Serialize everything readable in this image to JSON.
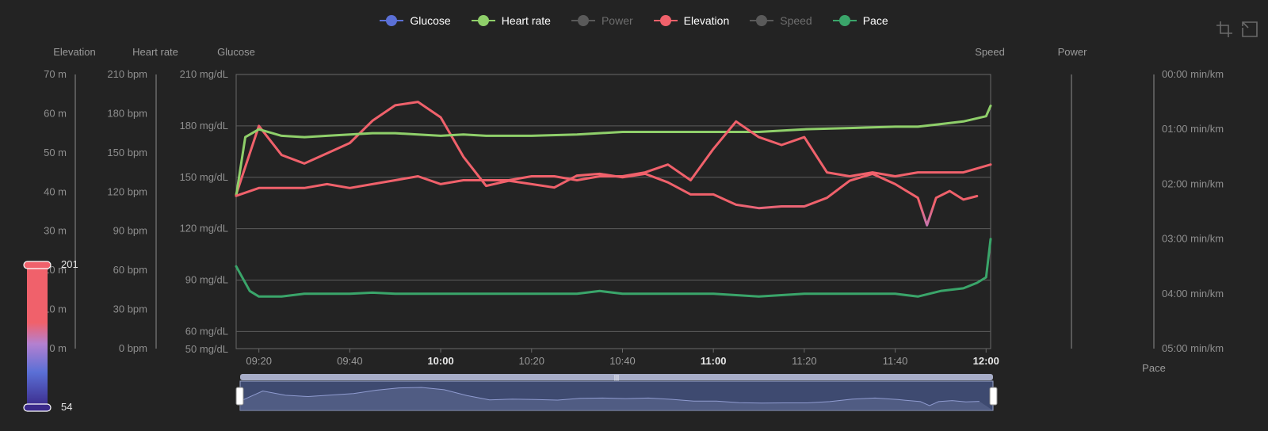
{
  "colors": {
    "glucose": "#5b70d6",
    "heart_rate": "#8fcf6a",
    "power": "#5a5a5a",
    "elevation": "#f0616b",
    "speed": "#5a5a5a",
    "pace": "#3aa56a",
    "glucose_low": "#b480d0",
    "visual_map_top": "#f0616b",
    "visual_map_bottom": "#3b2a8a"
  },
  "legend": {
    "items": [
      {
        "label": "Glucose",
        "color": "#5b70d6",
        "active": true
      },
      {
        "label": "Heart rate",
        "color": "#8fcf6a",
        "active": true
      },
      {
        "label": "Power",
        "color": "#5a5a5a",
        "active": false
      },
      {
        "label": "Elevation",
        "color": "#f0616b",
        "active": true
      },
      {
        "label": "Speed",
        "color": "#5a5a5a",
        "active": false
      },
      {
        "label": "Pace",
        "color": "#3aa56a",
        "active": true
      }
    ]
  },
  "toolbox": {
    "icons": [
      "zoom-select-icon",
      "zoom-reset-icon"
    ]
  },
  "chart_data": {
    "type": "line",
    "x_range": [
      "09:15",
      "12:01"
    ],
    "x_ticks": [
      {
        "label": "09:20",
        "bold": false
      },
      {
        "label": "09:40",
        "bold": false
      },
      {
        "label": "10:00",
        "bold": true
      },
      {
        "label": "10:20",
        "bold": false
      },
      {
        "label": "10:40",
        "bold": false
      },
      {
        "label": "11:00",
        "bold": true
      },
      {
        "label": "11:20",
        "bold": false
      },
      {
        "label": "11:40",
        "bold": false
      },
      {
        "label": "12:00",
        "bold": true
      }
    ],
    "axes": {
      "elevation": {
        "title": "Elevation",
        "ticks": [
          "70 m",
          "60 m",
          "50 m",
          "40 m",
          "30 m",
          "20 m",
          "10 m",
          "0 m"
        ]
      },
      "heart_rate": {
        "title": "Heart rate",
        "ticks": [
          "210 bpm",
          "180 bpm",
          "150 bpm",
          "120 bpm",
          "90 bpm",
          "60 bpm",
          "30 bpm",
          "0 bpm"
        ]
      },
      "glucose": {
        "title": "Glucose",
        "ticks": [
          "210 mg/dL",
          "180 mg/dL",
          "150 mg/dL",
          "120 mg/dL",
          "90 mg/dL",
          "60 mg/dL",
          "50 mg/dL"
        ],
        "ylim": [
          50,
          210
        ]
      },
      "speed": {
        "title": "Speed"
      },
      "power": {
        "title": "Power"
      },
      "pace": {
        "title": "Pace",
        "ticks": [
          "00:00 min/km",
          "01:00 min/km",
          "02:00 min/km",
          "03:00 min/km",
          "04:00 min/km",
          "05:00 min/km"
        ]
      }
    },
    "grid": true,
    "series": [
      {
        "name": "Glucose",
        "axis": "glucose",
        "x": [
          "09:15",
          "09:20",
          "09:25",
          "09:30",
          "09:35",
          "09:40",
          "09:45",
          "09:50",
          "09:55",
          "10:00",
          "10:05",
          "10:10",
          "10:15",
          "10:20",
          "10:25",
          "10:30",
          "10:35",
          "10:40",
          "10:45",
          "10:50",
          "10:55",
          "11:00",
          "11:05",
          "11:10",
          "11:15",
          "11:20",
          "11:25",
          "11:30",
          "11:35",
          "11:40",
          "11:45",
          "11:47",
          "11:49",
          "11:52",
          "11:55",
          "11:58"
        ],
        "y": [
          140,
          180,
          163,
          158,
          164,
          170,
          183,
          192,
          194,
          185,
          162,
          145,
          148,
          146,
          144,
          151,
          152,
          150,
          152,
          147,
          140,
          140,
          134,
          132,
          133,
          133,
          138,
          148,
          152,
          146,
          138,
          122,
          138,
          142,
          137,
          139
        ]
      },
      {
        "name": "Heart rate",
        "axis": "heart_rate",
        "x": [
          "09:15",
          "09:17",
          "09:20",
          "09:25",
          "09:30",
          "09:35",
          "09:40",
          "09:45",
          "09:50",
          "09:55",
          "10:00",
          "10:05",
          "10:10",
          "10:20",
          "10:30",
          "10:40",
          "10:50",
          "11:00",
          "11:10",
          "11:20",
          "11:30",
          "11:40",
          "11:45",
          "11:50",
          "11:55",
          "12:00",
          "12:01"
        ],
        "y": [
          117,
          162,
          168,
          163,
          162,
          163,
          164,
          165,
          165,
          164,
          163,
          164,
          163,
          163,
          164,
          166,
          166,
          166,
          166,
          168,
          169,
          170,
          170,
          172,
          174,
          178,
          186
        ]
      },
      {
        "name": "Elevation",
        "axis": "elevation",
        "x": [
          "09:15",
          "09:20",
          "09:25",
          "09:30",
          "09:35",
          "09:40",
          "09:45",
          "09:50",
          "09:55",
          "10:00",
          "10:05",
          "10:10",
          "10:15",
          "10:20",
          "10:25",
          "10:30",
          "10:35",
          "10:40",
          "10:45",
          "10:50",
          "10:55",
          "11:00",
          "11:05",
          "11:10",
          "11:15",
          "11:20",
          "11:25",
          "11:30",
          "11:35",
          "11:40",
          "11:45",
          "11:50",
          "11:55",
          "12:01"
        ],
        "y": [
          39,
          41,
          41,
          41,
          42,
          41,
          42,
          43,
          44,
          42,
          43,
          43,
          43,
          44,
          44,
          43,
          44,
          44,
          45,
          47,
          43,
          51,
          58,
          54,
          52,
          54,
          45,
          44,
          45,
          44,
          45,
          45,
          45,
          47
        ]
      },
      {
        "name": "Pace",
        "axis": "pace",
        "x": [
          "09:15",
          "09:18",
          "09:20",
          "09:25",
          "09:30",
          "09:35",
          "09:40",
          "09:45",
          "09:50",
          "09:55",
          "10:00",
          "10:10",
          "10:20",
          "10:30",
          "10:35",
          "10:40",
          "10:50",
          "11:00",
          "11:10",
          "11:20",
          "11:25",
          "11:30",
          "11:40",
          "11:45",
          "11:50",
          "11:55",
          "11:58",
          "12:00",
          "12:01"
        ],
        "y": [
          3.5,
          3.95,
          4.05,
          4.05,
          4.0,
          4.0,
          4.0,
          3.98,
          4.0,
          4.0,
          4.0,
          4.0,
          4.0,
          4.0,
          3.95,
          4.0,
          4.0,
          4.0,
          4.05,
          4.0,
          4.0,
          4.0,
          4.0,
          4.05,
          3.95,
          3.9,
          3.8,
          3.7,
          3.0
        ]
      }
    ]
  },
  "visual_map": {
    "max_label": "201",
    "min_label": "54",
    "max": 201,
    "min": 54
  },
  "data_zoom": {
    "start": 0,
    "end": 100
  }
}
